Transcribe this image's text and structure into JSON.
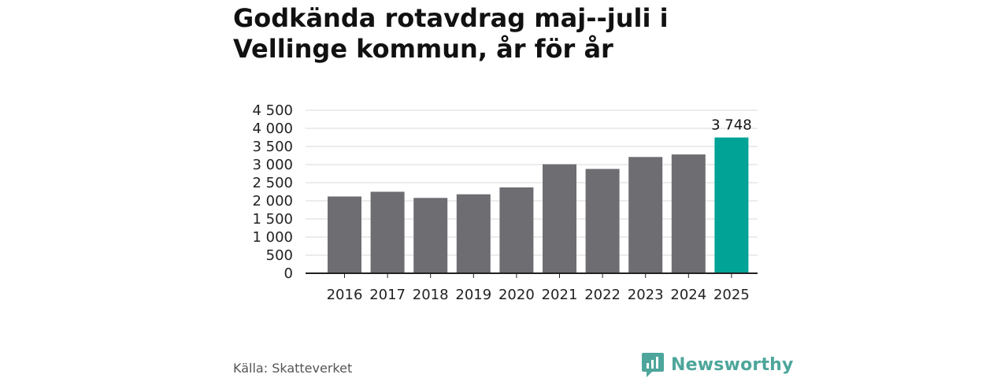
{
  "title": "Godkända rotavdrag maj--juli i Vellinge kommun, år för år",
  "source": "Källa: Skatteverket",
  "brand": {
    "name": "Newsworthy",
    "icon": "newsworthy-logo-icon"
  },
  "colors": {
    "bar": "#6e6d72",
    "highlight": "#00a396",
    "grid": "#d9d9d9",
    "axis": "#222222"
  },
  "chart_data": {
    "type": "bar",
    "title": "Godkända rotavdrag maj--juli i Vellinge kommun, år för år",
    "xlabel": "",
    "ylabel": "",
    "categories": [
      "2016",
      "2017",
      "2018",
      "2019",
      "2020",
      "2021",
      "2022",
      "2023",
      "2024",
      "2025"
    ],
    "values": [
      2120,
      2250,
      2080,
      2180,
      2370,
      3010,
      2880,
      3210,
      3280,
      3748
    ],
    "highlight_index": 9,
    "data_labels": [
      {
        "index": 9,
        "text": "3 748"
      }
    ],
    "ylim": [
      0,
      4500
    ],
    "yticks": [
      0,
      500,
      1000,
      1500,
      2000,
      2500,
      3000,
      3500,
      4000,
      4500
    ],
    "ytick_labels": [
      "0",
      "500",
      "1 000",
      "1 500",
      "2 000",
      "2 500",
      "3 000",
      "3 500",
      "4 000",
      "4 500"
    ],
    "grid": true,
    "legend": "none"
  }
}
